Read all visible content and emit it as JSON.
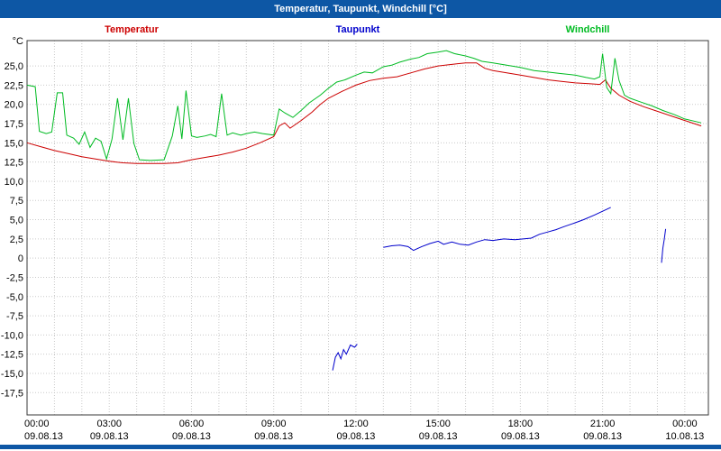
{
  "title_bar": {
    "title": "Temperatur, Taupunkt, Windchill [°C]"
  },
  "colors": {
    "titlebar": "#0d57a5",
    "plot_border": "#3a3a3a",
    "grid": "#c9c9c9",
    "background": "#ffffff",
    "tick_text": "#000000"
  },
  "legend": [
    {
      "label": "Temperatur",
      "color": "#cc0000",
      "x": 146
    },
    {
      "label": "Taupunkt",
      "color": "#0000cc",
      "x": 397
    },
    {
      "label": "Windchill",
      "color": "#00bb22",
      "x": 652
    }
  ],
  "chart_data": {
    "type": "line",
    "title": "Temperatur, Taupunkt, Windchill [°C]",
    "unit_label": "°C",
    "xlabel": "",
    "ylabel": "°C",
    "xlim": [
      0,
      24.86
    ],
    "ylim": [
      -20.4,
      28.3
    ],
    "grid": {
      "on": true,
      "style": "dotted",
      "x_step_hours": 1,
      "y_step_deg": 2.5
    },
    "legend_position": "top",
    "x_ticks": [
      {
        "hour": 0,
        "time": "00:00",
        "date": "09.08.13"
      },
      {
        "hour": 3,
        "time": "03:00",
        "date": "09.08.13"
      },
      {
        "hour": 6,
        "time": "06:00",
        "date": "09.08.13"
      },
      {
        "hour": 9,
        "time": "09:00",
        "date": "09.08.13"
      },
      {
        "hour": 12,
        "time": "12:00",
        "date": "09.08.13"
      },
      {
        "hour": 15,
        "time": "15:00",
        "date": "09.08.13"
      },
      {
        "hour": 18,
        "time": "18:00",
        "date": "09.08.13"
      },
      {
        "hour": 21,
        "time": "21:00",
        "date": "09.08.13"
      },
      {
        "hour": 24,
        "time": "00:00",
        "date": "10.08.13"
      }
    ],
    "y_ticks": [
      {
        "value": 25,
        "label": "25,0"
      },
      {
        "value": 22.5,
        "label": "22,5"
      },
      {
        "value": 20,
        "label": "20,0"
      },
      {
        "value": 17.5,
        "label": "17,5"
      },
      {
        "value": 15,
        "label": "15,0"
      },
      {
        "value": 12.5,
        "label": "12,5"
      },
      {
        "value": 10,
        "label": "10,0"
      },
      {
        "value": 7.5,
        "label": "7,5"
      },
      {
        "value": 5,
        "label": "5,0"
      },
      {
        "value": 2.5,
        "label": "2,5"
      },
      {
        "value": 0,
        "label": "0"
      },
      {
        "value": -2.5,
        "label": "-2,5"
      },
      {
        "value": -5,
        "label": "-5,0"
      },
      {
        "value": -7.5,
        "label": "-7,5"
      },
      {
        "value": -10,
        "label": "-10,0"
      },
      {
        "value": -12.5,
        "label": "-12,5"
      },
      {
        "value": -15,
        "label": "-15,0"
      },
      {
        "value": -17.5,
        "label": "-17,5"
      }
    ],
    "series": [
      {
        "name": "Temperatur",
        "color": "#cc0000",
        "segments": [
          [
            [
              0,
              15.0
            ],
            [
              0.5,
              14.5
            ],
            [
              1,
              14.0
            ],
            [
              1.5,
              13.6
            ],
            [
              2,
              13.2
            ],
            [
              2.5,
              12.9
            ],
            [
              3,
              12.6
            ],
            [
              3.5,
              12.4
            ],
            [
              4,
              12.3
            ],
            [
              4.5,
              12.3
            ],
            [
              5,
              12.3
            ],
            [
              5.5,
              12.4
            ],
            [
              6,
              12.8
            ],
            [
              6.5,
              13.1
            ],
            [
              7,
              13.4
            ],
            [
              7.5,
              13.8
            ],
            [
              8,
              14.3
            ],
            [
              8.5,
              15.0
            ],
            [
              9,
              15.8
            ],
            [
              9.2,
              17.2
            ],
            [
              9.4,
              17.6
            ],
            [
              9.6,
              16.9
            ],
            [
              10,
              17.9
            ],
            [
              10.4,
              19.0
            ],
            [
              10.7,
              20.0
            ],
            [
              11,
              20.8
            ],
            [
              11.5,
              21.7
            ],
            [
              12,
              22.5
            ],
            [
              12.5,
              23.1
            ],
            [
              13,
              23.4
            ],
            [
              13.5,
              23.6
            ],
            [
              14,
              24.1
            ],
            [
              14.5,
              24.6
            ],
            [
              15,
              25.0
            ],
            [
              15.5,
              25.2
            ],
            [
              16,
              25.4
            ],
            [
              16.4,
              25.4
            ],
            [
              16.7,
              24.7
            ],
            [
              17,
              24.4
            ],
            [
              17.5,
              24.1
            ],
            [
              18,
              23.8
            ],
            [
              18.5,
              23.5
            ],
            [
              19,
              23.2
            ],
            [
              19.5,
              23.0
            ],
            [
              20,
              22.8
            ],
            [
              20.5,
              22.7
            ],
            [
              20.9,
              22.6
            ],
            [
              21.1,
              23.2
            ],
            [
              21.3,
              22.1
            ],
            [
              21.6,
              21.2
            ],
            [
              22,
              20.4
            ],
            [
              22.5,
              19.7
            ],
            [
              23,
              19.1
            ],
            [
              23.5,
              18.5
            ],
            [
              24,
              17.9
            ],
            [
              24.6,
              17.2
            ]
          ]
        ]
      },
      {
        "name": "Taupunkt",
        "color": "#0000cc",
        "segments": [
          [
            [
              11.15,
              -14.6
            ],
            [
              11.25,
              -12.9
            ],
            [
              11.35,
              -12.3
            ],
            [
              11.45,
              -13.1
            ],
            [
              11.55,
              -11.9
            ],
            [
              11.65,
              -12.5
            ],
            [
              11.8,
              -11.3
            ],
            [
              11.95,
              -11.6
            ],
            [
              12.05,
              -11.2
            ]
          ],
          [
            [
              13,
              1.4
            ],
            [
              13.3,
              1.6
            ],
            [
              13.6,
              1.7
            ],
            [
              13.9,
              1.5
            ],
            [
              14.1,
              1.0
            ],
            [
              14.4,
              1.5
            ],
            [
              14.7,
              1.9
            ],
            [
              15,
              2.2
            ],
            [
              15.2,
              1.8
            ],
            [
              15.5,
              2.1
            ],
            [
              15.8,
              1.8
            ],
            [
              16.1,
              1.7
            ],
            [
              16.4,
              2.1
            ],
            [
              16.7,
              2.4
            ],
            [
              17,
              2.3
            ],
            [
              17.4,
              2.5
            ],
            [
              17.8,
              2.4
            ],
            [
              18.1,
              2.5
            ],
            [
              18.4,
              2.6
            ],
            [
              18.7,
              3.1
            ],
            [
              19,
              3.4
            ],
            [
              19.3,
              3.7
            ],
            [
              19.6,
              4.1
            ],
            [
              20,
              4.6
            ],
            [
              20.3,
              5.0
            ],
            [
              20.7,
              5.6
            ],
            [
              21,
              6.1
            ],
            [
              21.3,
              6.6
            ]
          ],
          [
            [
              23.15,
              -0.6
            ],
            [
              23.2,
              1.3
            ],
            [
              23.25,
              2.4
            ],
            [
              23.3,
              3.8
            ]
          ]
        ]
      },
      {
        "name": "Windchill",
        "color": "#00bb22",
        "segments": [
          [
            [
              0,
              22.5
            ],
            [
              0.3,
              22.3
            ],
            [
              0.45,
              16.5
            ],
            [
              0.7,
              16.2
            ],
            [
              0.9,
              16.4
            ],
            [
              1.1,
              21.5
            ],
            [
              1.3,
              21.5
            ],
            [
              1.45,
              16.0
            ],
            [
              1.7,
              15.6
            ],
            [
              1.9,
              14.8
            ],
            [
              2.1,
              16.4
            ],
            [
              2.3,
              14.4
            ],
            [
              2.5,
              15.6
            ],
            [
              2.7,
              15.2
            ],
            [
              2.9,
              12.9
            ],
            [
              3.1,
              15.5
            ],
            [
              3.3,
              20.8
            ],
            [
              3.5,
              15.4
            ],
            [
              3.7,
              20.8
            ],
            [
              3.9,
              14.9
            ],
            [
              4.1,
              12.8
            ],
            [
              4.5,
              12.7
            ],
            [
              5,
              12.8
            ],
            [
              5.3,
              15.9
            ],
            [
              5.5,
              19.8
            ],
            [
              5.65,
              15.5
            ],
            [
              5.8,
              21.8
            ],
            [
              6,
              15.9
            ],
            [
              6.2,
              15.7
            ],
            [
              6.5,
              15.9
            ],
            [
              6.7,
              16.1
            ],
            [
              6.9,
              15.8
            ],
            [
              7.1,
              21.4
            ],
            [
              7.3,
              16.0
            ],
            [
              7.5,
              16.3
            ],
            [
              7.8,
              16.0
            ],
            [
              8,
              16.2
            ],
            [
              8.3,
              16.4
            ],
            [
              8.6,
              16.2
            ],
            [
              9,
              16.0
            ],
            [
              9.2,
              19.4
            ],
            [
              9.4,
              18.9
            ],
            [
              9.7,
              18.3
            ],
            [
              10,
              19.2
            ],
            [
              10.3,
              20.2
            ],
            [
              10.7,
              21.2
            ],
            [
              11,
              22.1
            ],
            [
              11.3,
              22.9
            ],
            [
              11.6,
              23.2
            ],
            [
              12,
              23.8
            ],
            [
              12.3,
              24.2
            ],
            [
              12.6,
              24.1
            ],
            [
              13,
              24.9
            ],
            [
              13.3,
              25.1
            ],
            [
              13.6,
              25.5
            ],
            [
              14,
              25.9
            ],
            [
              14.3,
              26.1
            ],
            [
              14.6,
              26.6
            ],
            [
              15,
              26.8
            ],
            [
              15.3,
              27.0
            ],
            [
              15.6,
              26.6
            ],
            [
              16,
              26.3
            ],
            [
              16.3,
              26.0
            ],
            [
              16.6,
              25.6
            ],
            [
              17,
              25.4
            ],
            [
              17.5,
              25.1
            ],
            [
              18,
              24.8
            ],
            [
              18.5,
              24.4
            ],
            [
              19,
              24.2
            ],
            [
              19.5,
              24.0
            ],
            [
              20,
              23.8
            ],
            [
              20.4,
              23.5
            ],
            [
              20.7,
              23.3
            ],
            [
              20.9,
              23.6
            ],
            [
              21.0,
              26.6
            ],
            [
              21.15,
              22.2
            ],
            [
              21.3,
              21.4
            ],
            [
              21.45,
              26.0
            ],
            [
              21.6,
              23.1
            ],
            [
              21.8,
              21.2
            ],
            [
              22,
              20.8
            ],
            [
              22.4,
              20.3
            ],
            [
              22.8,
              19.8
            ],
            [
              23.2,
              19.2
            ],
            [
              23.6,
              18.7
            ],
            [
              24,
              18.1
            ],
            [
              24.6,
              17.6
            ]
          ]
        ]
      }
    ]
  }
}
